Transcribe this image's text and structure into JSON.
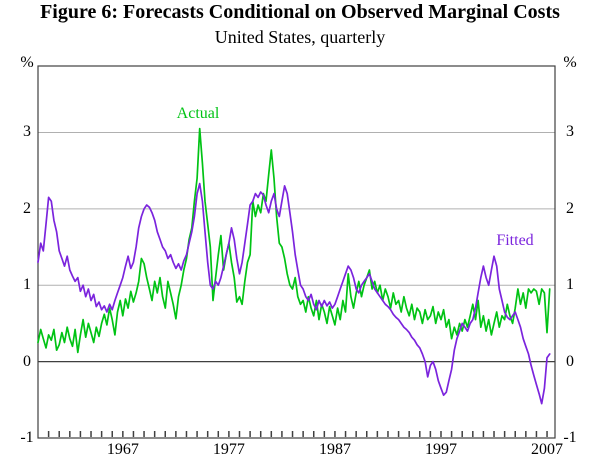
{
  "chart_data": {
    "type": "line",
    "title": "Figure 6: Forecasts Conditional on Observed Marginal Costs",
    "subtitle": "United States, quarterly",
    "unit_label": "%",
    "x_start": 1959.0,
    "x_step": 0.25,
    "xlim": [
      1959.0,
      2007.75
    ],
    "ylim": [
      -1,
      3.87
    ],
    "yticks": [
      -1,
      0,
      1,
      2,
      3
    ],
    "gridlines_at": [
      1,
      2,
      3
    ],
    "zero_line": true,
    "minor_tick_years_start": 1960,
    "minor_tick_years_end": 2007,
    "xtick_labels": [
      "1967",
      "1977",
      "1987",
      "1997",
      "2007"
    ],
    "xtick_label_years": [
      1967,
      1977,
      1987,
      1997,
      2007
    ],
    "legend_position": "annotations-on-chart",
    "grid": "horizontal-only",
    "colors": {
      "gridline": "#b0b0b0",
      "axis": "#3f3f3f",
      "zero_line": "#3f3f3f",
      "actual": "#00c314",
      "fitted": "#7b24dd"
    },
    "series": [
      {
        "name": "Actual",
        "color": "#00c314",
        "values": [
          0.25,
          0.42,
          0.3,
          0.18,
          0.35,
          0.28,
          0.42,
          0.15,
          0.22,
          0.38,
          0.25,
          0.45,
          0.3,
          0.2,
          0.42,
          0.12,
          0.35,
          0.55,
          0.32,
          0.5,
          0.38,
          0.25,
          0.45,
          0.33,
          0.5,
          0.62,
          0.48,
          0.7,
          0.55,
          0.35,
          0.65,
          0.8,
          0.6,
          0.82,
          0.7,
          0.92,
          0.78,
          0.9,
          1.05,
          1.35,
          1.28,
          1.1,
          0.95,
          0.8,
          1.05,
          0.9,
          1.1,
          0.85,
          0.7,
          1.05,
          0.9,
          0.75,
          0.56,
          0.85,
          1.0,
          1.2,
          1.35,
          1.6,
          1.75,
          2.1,
          2.4,
          3.05,
          2.6,
          2.1,
          1.8,
          1.5,
          0.8,
          1.1,
          1.4,
          1.65,
          1.2,
          1.4,
          1.55,
          1.3,
          1.1,
          0.78,
          0.85,
          0.75,
          1.05,
          1.3,
          1.4,
          2.1,
          1.9,
          2.05,
          1.95,
          2.2,
          2.1,
          2.45,
          2.77,
          2.4,
          1.9,
          1.55,
          1.5,
          1.35,
          1.15,
          1.0,
          0.95,
          1.1,
          0.85,
          0.75,
          0.8,
          0.65,
          0.85,
          0.7,
          0.6,
          0.8,
          0.55,
          0.75,
          0.65,
          0.5,
          0.72,
          0.6,
          0.48,
          0.7,
          0.55,
          0.8,
          0.65,
          1.15,
          0.85,
          0.7,
          0.9,
          1.05,
          0.85,
          1.0,
          1.1,
          1.2,
          0.95,
          1.05,
          0.9,
          1.0,
          0.8,
          0.95,
          0.85,
          0.7,
          0.9,
          0.75,
          0.8,
          0.65,
          0.85,
          0.7,
          0.6,
          0.75,
          0.55,
          0.7,
          0.65,
          0.5,
          0.68,
          0.55,
          0.6,
          0.72,
          0.5,
          0.65,
          0.55,
          0.68,
          0.45,
          0.55,
          0.3,
          0.45,
          0.35,
          0.5,
          0.4,
          0.55,
          0.45,
          0.6,
          0.75,
          0.55,
          0.8,
          0.45,
          0.6,
          0.4,
          0.55,
          0.35,
          0.5,
          0.65,
          0.45,
          0.6,
          0.55,
          0.75,
          0.6,
          0.5,
          0.7,
          0.95,
          0.75,
          0.9,
          0.7,
          0.95,
          0.9,
          0.95,
          0.92,
          0.75,
          0.95,
          0.9,
          0.38,
          0.95
        ]
      },
      {
        "name": "Fitted",
        "color": "#7b24dd",
        "values": [
          1.3,
          1.55,
          1.45,
          1.8,
          2.15,
          2.1,
          1.85,
          1.7,
          1.45,
          1.35,
          1.25,
          1.38,
          1.2,
          1.12,
          1.05,
          1.1,
          0.92,
          1.0,
          0.85,
          0.95,
          0.8,
          0.88,
          0.72,
          0.78,
          0.68,
          0.73,
          0.65,
          0.75,
          0.68,
          0.8,
          0.9,
          1.0,
          1.1,
          1.25,
          1.38,
          1.22,
          1.3,
          1.5,
          1.75,
          1.9,
          2.0,
          2.05,
          2.02,
          1.95,
          1.85,
          1.7,
          1.6,
          1.5,
          1.45,
          1.35,
          1.4,
          1.3,
          1.22,
          1.28,
          1.2,
          1.32,
          1.4,
          1.55,
          1.7,
          1.9,
          2.2,
          2.33,
          2.1,
          1.7,
          1.3,
          1.0,
          0.95,
          1.05,
          1.0,
          1.1,
          1.25,
          1.4,
          1.55,
          1.75,
          1.6,
          1.35,
          1.15,
          1.3,
          1.55,
          1.8,
          2.05,
          2.1,
          2.2,
          2.15,
          2.22,
          2.18,
          2.05,
          1.95,
          2.1,
          2.2,
          2.0,
          1.9,
          2.1,
          2.3,
          2.2,
          1.95,
          1.7,
          1.4,
          1.2,
          1.0,
          0.95,
          0.85,
          0.8,
          0.88,
          0.75,
          0.68,
          0.8,
          0.72,
          0.8,
          0.73,
          0.78,
          0.7,
          0.75,
          0.85,
          0.95,
          1.05,
          1.15,
          1.25,
          1.2,
          1.1,
          0.95,
          0.9,
          1.0,
          1.05,
          1.1,
          1.15,
          1.05,
          0.95,
          0.9,
          0.85,
          0.8,
          0.75,
          0.72,
          0.68,
          0.62,
          0.58,
          0.55,
          0.5,
          0.45,
          0.42,
          0.38,
          0.32,
          0.28,
          0.22,
          0.18,
          0.1,
          0.0,
          -0.2,
          -0.05,
          0.0,
          -0.1,
          -0.25,
          -0.35,
          -0.44,
          -0.4,
          -0.25,
          -0.1,
          0.15,
          0.3,
          0.4,
          0.5,
          0.45,
          0.4,
          0.5,
          0.55,
          0.7,
          0.9,
          1.1,
          1.25,
          1.1,
          1.0,
          1.2,
          1.38,
          1.25,
          0.95,
          0.8,
          0.65,
          0.58,
          0.55,
          0.6,
          0.65,
          0.55,
          0.45,
          0.3,
          0.2,
          0.1,
          -0.05,
          -0.18,
          -0.3,
          -0.42,
          -0.55,
          -0.35,
          0.05,
          0.1
        ]
      }
    ]
  }
}
